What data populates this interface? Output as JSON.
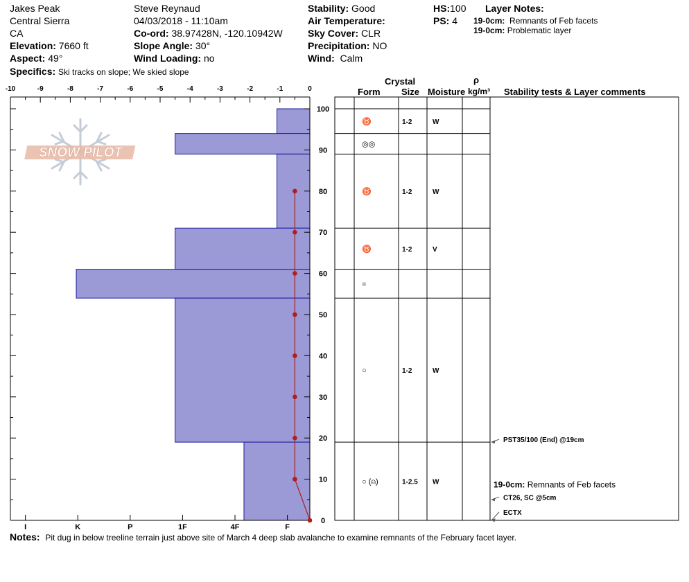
{
  "header": {
    "location": "Jakes Peak",
    "range": "Central Sierra",
    "state": "CA",
    "elevation_label": "Elevation:",
    "elevation_value": "7660 ft",
    "aspect_label": "Aspect:",
    "aspect_value": "49°",
    "observer": "Steve Reynaud",
    "datetime": "04/03/2018 - 11:10am",
    "coord_label": "Co-ord:",
    "coord_value": "38.97428N, -120.10942W",
    "slope_label": "Slope Angle:",
    "slope_value": "30°",
    "wind_loading_label": "Wind Loading:",
    "wind_loading_value": "no",
    "stability_label": "Stability:",
    "stability_value": "Good",
    "air_temp_label": "Air Temperature:",
    "sky_label": "Sky Cover:",
    "sky_value": "CLR",
    "precip_label": "Precipitation:",
    "precip_value": "NO",
    "wind_label": "Wind:",
    "wind_value": "Calm",
    "hs_label": "HS:",
    "hs_value": "100",
    "ps_label": "PS:",
    "ps_value": "4",
    "layer_notes_label": "Layer Notes:",
    "layer_note_1_depth": "19-0cm:",
    "layer_note_1_text": "Remnants of Feb facets",
    "layer_note_2_depth": "19-0cm:",
    "layer_note_2_text": "Problematic layer",
    "specifics_label": "Specifics:",
    "specifics_value": "Ski tracks on slope; We skied slope"
  },
  "columns": {
    "crystal": "Crystal",
    "form": "Form",
    "size": "Size",
    "moisture": "Moisture",
    "rho": "ρ",
    "density": "kg/m³",
    "stability": "Stability tests & Layer comments"
  },
  "logo_text": "SNOW PILOT",
  "notes_label": "Notes:",
  "notes_value": "Pit dug in below treeline terrain just above site of March 4 deep slab avalanche to examine remnants of the February facet layer.",
  "colors": {
    "hardness_fill": "#9b99d6",
    "hardness_stroke": "#1a1a9c",
    "temp_line": "#b01e1e"
  },
  "chart_data": {
    "type": "area",
    "top_axis": {
      "label_values": [
        -10,
        -9,
        -8,
        -7,
        -6,
        -5,
        -4,
        -3,
        -2,
        -1,
        0
      ]
    },
    "bottom_axis": {
      "labels": [
        "I",
        "K",
        "P",
        "1F",
        "4F",
        "F"
      ],
      "values": [
        9.5,
        7.75,
        6,
        4.25,
        2.5,
        0.75
      ]
    },
    "height_axis": {
      "range": [
        0,
        100
      ],
      "labels": [
        0,
        10,
        20,
        30,
        40,
        50,
        60,
        70,
        80,
        90,
        100
      ]
    },
    "hardness_layers": [
      {
        "top": 100,
        "bottom": 94,
        "hardness": 1.1
      },
      {
        "top": 94,
        "bottom": 89,
        "hardness": 4.5
      },
      {
        "top": 89,
        "bottom": 71,
        "hardness": 1.1
      },
      {
        "top": 71,
        "bottom": 61,
        "hardness": 4.5
      },
      {
        "top": 61,
        "bottom": 54,
        "hardness": 7.8
      },
      {
        "top": 54,
        "bottom": 19,
        "hardness": 4.5
      },
      {
        "top": 19,
        "bottom": 0,
        "hardness": 2.2
      }
    ],
    "temperature_profile": [
      {
        "height": 80,
        "temp": -0.5
      },
      {
        "height": 70,
        "temp": -0.5
      },
      {
        "height": 60,
        "temp": -0.5
      },
      {
        "height": 50,
        "temp": -0.5
      },
      {
        "height": 40,
        "temp": -0.5
      },
      {
        "height": 30,
        "temp": -0.5
      },
      {
        "height": 20,
        "temp": -0.5
      },
      {
        "height": 10,
        "temp": -0.5
      },
      {
        "height": 0,
        "temp": 0
      }
    ],
    "layer_table": [
      {
        "top": 100,
        "bottom": 94,
        "form": "♉",
        "size": "1-2",
        "moisture": "W"
      },
      {
        "top": 94,
        "bottom": 89,
        "form": "◎◎",
        "size": "",
        "moisture": ""
      },
      {
        "top": 89,
        "bottom": 71,
        "form": "♉",
        "size": "1-2",
        "moisture": "W"
      },
      {
        "top": 71,
        "bottom": 61,
        "form": "♉",
        "size": "1-2",
        "moisture": "V"
      },
      {
        "top": 61,
        "bottom": 54,
        "form": "=",
        "size": "",
        "moisture": ""
      },
      {
        "top": 54,
        "bottom": 19,
        "form": "○",
        "size": "1-2",
        "moisture": "W"
      },
      {
        "top": 19,
        "bottom": 0,
        "form": "○ (⍝)",
        "size": "1-2.5",
        "moisture": "W"
      }
    ],
    "stability_tests": [
      {
        "height": 19,
        "text": "PST35/100 (End) @19cm"
      },
      {
        "height": 5,
        "text": "CT26, SC @5cm"
      },
      {
        "height": 0,
        "text": "ECTX"
      }
    ],
    "layer_comments": [
      {
        "height": 10,
        "depth": "19-0cm:",
        "text": "Remnants of Feb facets"
      }
    ]
  }
}
